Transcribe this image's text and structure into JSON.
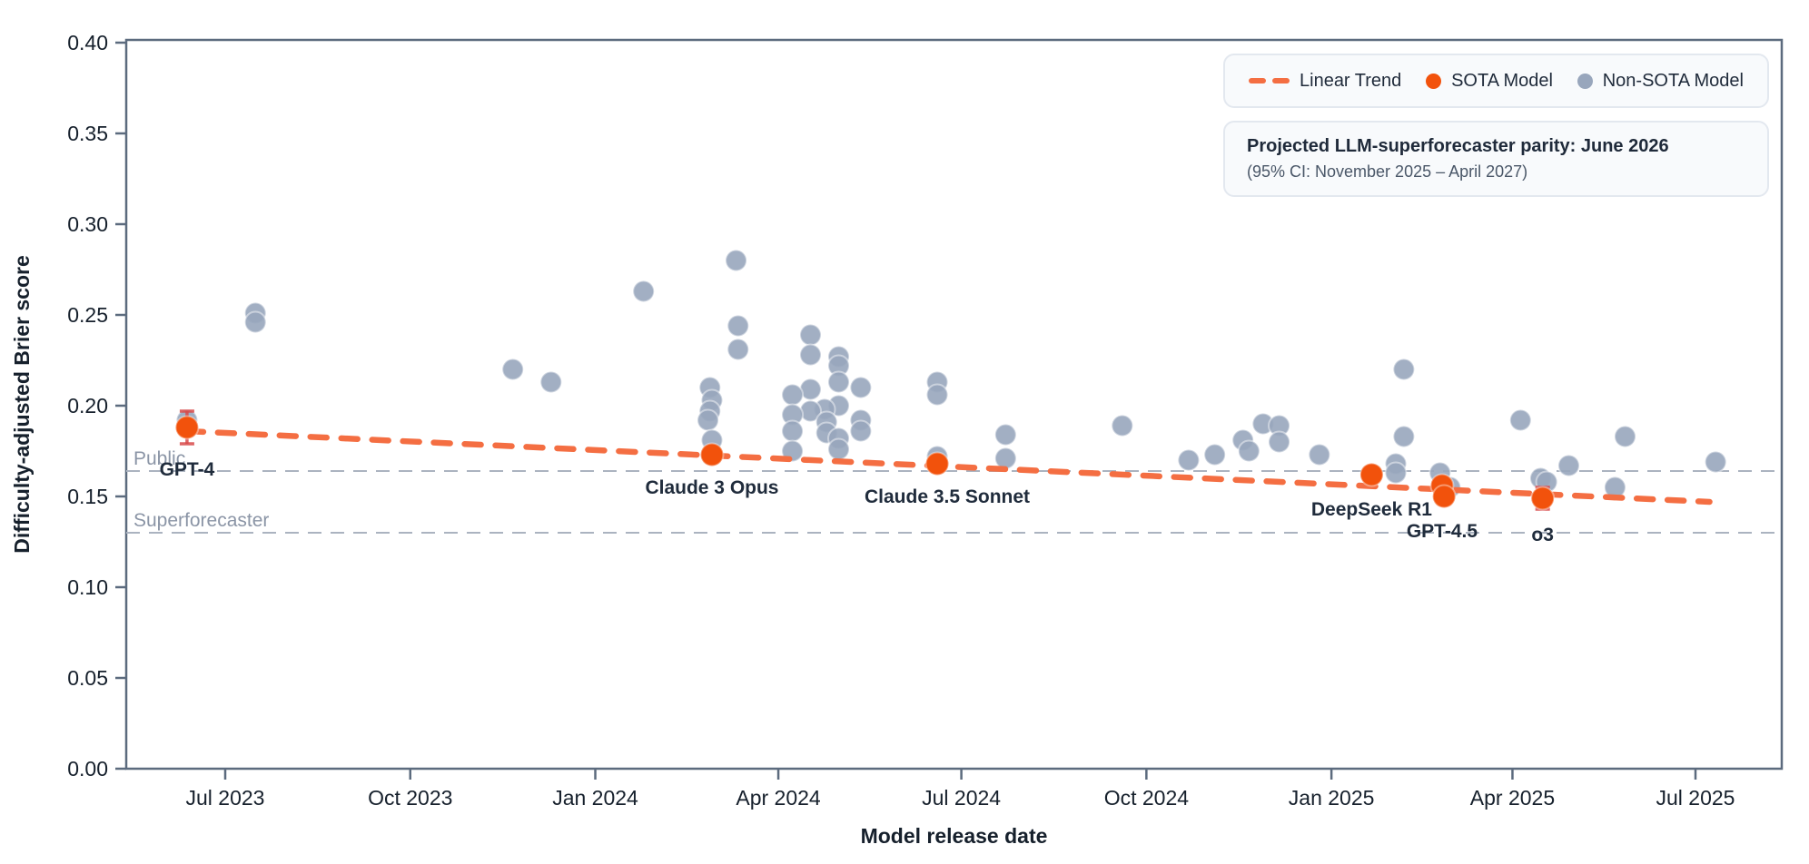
{
  "colors": {
    "sota": "#F2520C",
    "non_sota": "#98A6BC",
    "trend": "#F46E42",
    "error_bar": "#D84A4A",
    "spine": "#5C6B7E",
    "tick_label": "#16202C",
    "axis_title": "#16202C",
    "ref_line": "#ABB3C0",
    "ref_label": "#8B95A6",
    "model_label": "#202C3C",
    "box_bg": "#F8FAFC",
    "box_border": "#E3E8EF"
  },
  "legend": {
    "items": [
      {
        "label": "Linear Trend",
        "swatch": "orange-dash"
      },
      {
        "label": "SOTA Model",
        "swatch": "orange-dot"
      },
      {
        "label": "Non-SOTA Model",
        "swatch": "gray-dot"
      }
    ]
  },
  "annotation": {
    "title": "Projected LLM-superforecaster parity: June 2026",
    "subtitle": "(95% CI: November 2025 – April 2027)"
  },
  "chart_data": {
    "type": "scatter",
    "xlabel": "Model release date",
    "ylabel": "Difficulty-adjusted Brier score",
    "ylim": [
      0,
      0.4
    ],
    "x_range": [
      "2023-05-13",
      "2025-08-13"
    ],
    "grid": false,
    "legend_position": "top-right",
    "x_ticks": [
      {
        "date": "2023-07-01",
        "label": "Jul 2023"
      },
      {
        "date": "2023-10-01",
        "label": "Oct 2023"
      },
      {
        "date": "2024-01-01",
        "label": "Jan 2024"
      },
      {
        "date": "2024-04-01",
        "label": "Apr 2024"
      },
      {
        "date": "2024-07-01",
        "label": "Jul 2024"
      },
      {
        "date": "2024-10-01",
        "label": "Oct 2024"
      },
      {
        "date": "2025-01-01",
        "label": "Jan 2025"
      },
      {
        "date": "2025-04-01",
        "label": "Apr 2025"
      },
      {
        "date": "2025-07-01",
        "label": "Jul 2025"
      }
    ],
    "y_ticks": [
      {
        "value": 0.0,
        "label": "0.00"
      },
      {
        "value": 0.05,
        "label": "0.05"
      },
      {
        "value": 0.1,
        "label": "0.10"
      },
      {
        "value": 0.15,
        "label": "0.15"
      },
      {
        "value": 0.2,
        "label": "0.20"
      },
      {
        "value": 0.25,
        "label": "0.25"
      },
      {
        "value": 0.3,
        "label": "0.30"
      },
      {
        "value": 0.35,
        "label": "0.35"
      },
      {
        "value": 0.4,
        "label": "0.40"
      }
    ],
    "reference_lines": [
      {
        "label": "Public",
        "value": 0.164
      },
      {
        "label": "Superforecaster",
        "value": 0.13
      }
    ],
    "trend": {
      "name": "Linear Trend",
      "start": {
        "date": "2023-06-12",
        "value": 0.186
      },
      "end": {
        "date": "2025-07-08",
        "value": 0.147
      }
    },
    "series": [
      {
        "name": "SOTA Model",
        "points": [
          {
            "model": "GPT-4",
            "date": "2023-06-12",
            "value": 0.188,
            "error": 0.009,
            "label_dy": 53
          },
          {
            "model": "Claude 3 Opus",
            "date": "2024-02-28",
            "value": 0.173,
            "error": 0.004,
            "label_dy": 43
          },
          {
            "model": "Claude 3.5 Sonnet",
            "date": "2024-06-19",
            "value": 0.168,
            "error": 0.003,
            "label_dy": 43,
            "label_dx": 11
          },
          {
            "model": "DeepSeek R1",
            "date": "2025-01-21",
            "value": 0.162,
            "error": 0.004,
            "label_dy": 45
          },
          {
            "model": "GPT-4.5",
            "date": "2025-02-25",
            "value": 0.156,
            "error": 0.004,
            "label_dy": 57
          },
          {
            "date": "2025-02-26",
            "value": 0.15,
            "error": 0.004
          },
          {
            "model": "o3",
            "date": "2025-04-16",
            "value": 0.149,
            "error": 0.006,
            "label_dy": 47
          }
        ]
      },
      {
        "name": "Non-SOTA Model",
        "points": [
          {
            "date": "2023-06-12",
            "value": 0.192
          },
          {
            "date": "2023-07-16",
            "value": 0.251
          },
          {
            "date": "2023-07-16",
            "value": 0.246
          },
          {
            "date": "2023-11-21",
            "value": 0.22
          },
          {
            "date": "2023-12-10",
            "value": 0.213
          },
          {
            "date": "2024-01-25",
            "value": 0.263
          },
          {
            "date": "2024-03-11",
            "value": 0.28
          },
          {
            "date": "2024-03-12",
            "value": 0.244
          },
          {
            "date": "2024-03-12",
            "value": 0.231
          },
          {
            "date": "2024-02-27",
            "value": 0.21
          },
          {
            "date": "2024-02-28",
            "value": 0.203
          },
          {
            "date": "2024-02-27",
            "value": 0.197
          },
          {
            "date": "2024-02-26",
            "value": 0.192
          },
          {
            "date": "2024-02-28",
            "value": 0.181
          },
          {
            "date": "2024-04-17",
            "value": 0.239
          },
          {
            "date": "2024-04-17",
            "value": 0.228
          },
          {
            "date": "2024-05-01",
            "value": 0.227
          },
          {
            "date": "2024-05-01",
            "value": 0.222
          },
          {
            "date": "2024-05-01",
            "value": 0.213
          },
          {
            "date": "2024-05-12",
            "value": 0.21
          },
          {
            "date": "2024-04-17",
            "value": 0.209
          },
          {
            "date": "2024-04-08",
            "value": 0.206
          },
          {
            "date": "2024-05-01",
            "value": 0.2
          },
          {
            "date": "2024-04-24",
            "value": 0.198
          },
          {
            "date": "2024-04-17",
            "value": 0.197
          },
          {
            "date": "2024-04-08",
            "value": 0.195
          },
          {
            "date": "2024-05-12",
            "value": 0.192
          },
          {
            "date": "2024-04-25",
            "value": 0.191
          },
          {
            "date": "2024-04-08",
            "value": 0.186
          },
          {
            "date": "2024-05-12",
            "value": 0.186
          },
          {
            "date": "2024-04-25",
            "value": 0.185
          },
          {
            "date": "2024-05-01",
            "value": 0.182
          },
          {
            "date": "2024-05-01",
            "value": 0.176
          },
          {
            "date": "2024-04-08",
            "value": 0.175
          },
          {
            "date": "2024-06-19",
            "value": 0.213
          },
          {
            "date": "2024-06-19",
            "value": 0.206
          },
          {
            "date": "2024-06-19",
            "value": 0.172
          },
          {
            "date": "2024-07-23",
            "value": 0.184
          },
          {
            "date": "2024-07-23",
            "value": 0.171
          },
          {
            "date": "2024-09-19",
            "value": 0.189
          },
          {
            "date": "2024-10-22",
            "value": 0.17
          },
          {
            "date": "2024-11-04",
            "value": 0.173
          },
          {
            "date": "2024-11-18",
            "value": 0.181
          },
          {
            "date": "2024-11-21",
            "value": 0.175
          },
          {
            "date": "2024-11-28",
            "value": 0.19
          },
          {
            "date": "2024-12-06",
            "value": 0.189
          },
          {
            "date": "2024-12-06",
            "value": 0.18
          },
          {
            "date": "2024-12-26",
            "value": 0.173
          },
          {
            "date": "2025-02-02",
            "value": 0.168
          },
          {
            "date": "2025-02-02",
            "value": 0.163
          },
          {
            "date": "2025-02-06",
            "value": 0.22
          },
          {
            "date": "2025-02-06",
            "value": 0.183
          },
          {
            "date": "2025-02-24",
            "value": 0.163
          },
          {
            "date": "2025-03-01",
            "value": 0.155
          },
          {
            "date": "2025-04-05",
            "value": 0.192
          },
          {
            "date": "2025-04-15",
            "value": 0.16
          },
          {
            "date": "2025-04-18",
            "value": 0.158
          },
          {
            "date": "2025-04-29",
            "value": 0.167
          },
          {
            "date": "2025-05-22",
            "value": 0.155
          },
          {
            "date": "2025-05-27",
            "value": 0.183
          },
          {
            "date": "2025-07-11",
            "value": 0.169
          }
        ]
      }
    ]
  }
}
